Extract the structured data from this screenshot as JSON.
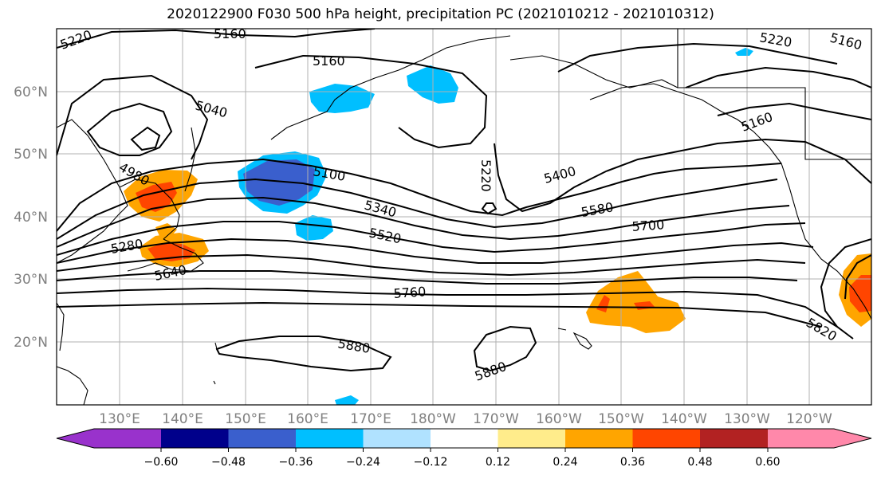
{
  "title": "2020122900 F030 500 hPa height, precipitation PC (2021010212 - 2021010312)",
  "map": {
    "lat_ticks": [
      "60°N",
      "50°N",
      "40°N",
      "30°N",
      "20°N"
    ],
    "lon_ticks": [
      "130°E",
      "140°E",
      "150°E",
      "160°E",
      "170°E",
      "180°W",
      "170°W",
      "160°W",
      "150°W",
      "140°W",
      "130°W",
      "120°W"
    ],
    "contour_labels": [
      "5220",
      "5160",
      "5160",
      "5220",
      "5160",
      "5040",
      "4980",
      "5100",
      "5220",
      "5400",
      "5160",
      "5340",
      "5580",
      "5520",
      "5700",
      "5280",
      "5640",
      "5760",
      "5820",
      "5880",
      "5880"
    ]
  },
  "colorbar": {
    "ticks": [
      "−0.60",
      "−0.48",
      "−0.36",
      "−0.24",
      "−0.12",
      "0.12",
      "0.24",
      "0.36",
      "0.48",
      "0.60"
    ],
    "colors": [
      "#9932cc",
      "#00008b",
      "#3a5fcd",
      "#00bfff",
      "#b0e2ff",
      "#ffffff",
      "#ffec8b",
      "#ffa500",
      "#ff4500",
      "#b22222",
      "#ff88aa"
    ]
  }
}
